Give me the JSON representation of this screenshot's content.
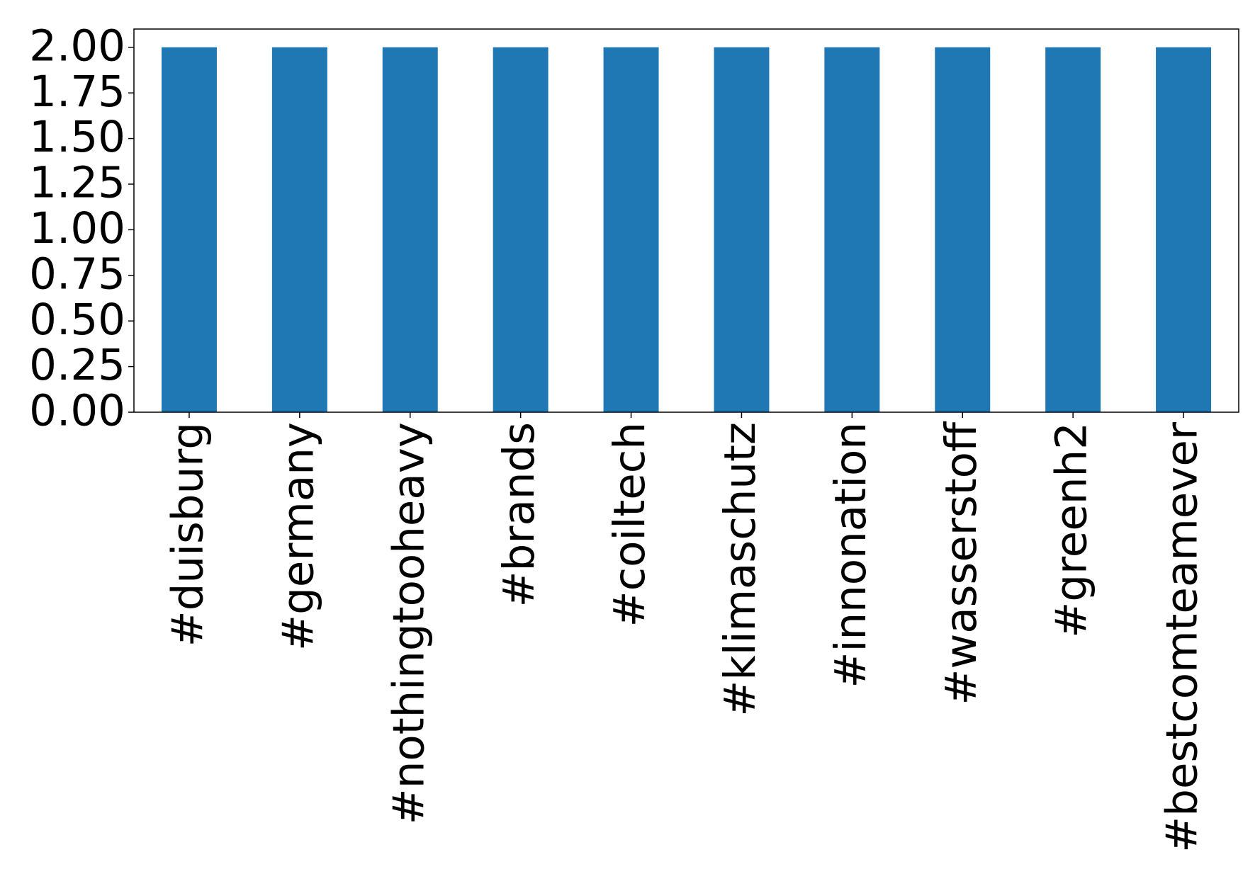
{
  "chart_data": {
    "type": "bar",
    "categories": [
      "#duisburg",
      "#germany",
      "#nothingtooheavy",
      "#brands",
      "#coiltech",
      "#klimaschutz",
      "#innonation",
      "#wasserstoff",
      "#greenh2",
      "#bestcomteamever"
    ],
    "values": [
      2,
      2,
      2,
      2,
      2,
      2,
      2,
      2,
      2,
      2
    ],
    "color": "#1f77b4",
    "ylim": [
      0,
      2.1
    ],
    "yticks": [
      {
        "value": 0,
        "label": "0.00"
      },
      {
        "value": 0.25,
        "label": "0.25"
      },
      {
        "value": 0.5,
        "label": "0.50"
      },
      {
        "value": 0.75,
        "label": "0.75"
      },
      {
        "value": 1,
        "label": "1.00"
      },
      {
        "value": 1.25,
        "label": "1.25"
      },
      {
        "value": 1.5,
        "label": "1.50"
      },
      {
        "value": 1.75,
        "label": "1.75"
      },
      {
        "value": 2,
        "label": "2.00"
      }
    ],
    "grid": false
  }
}
